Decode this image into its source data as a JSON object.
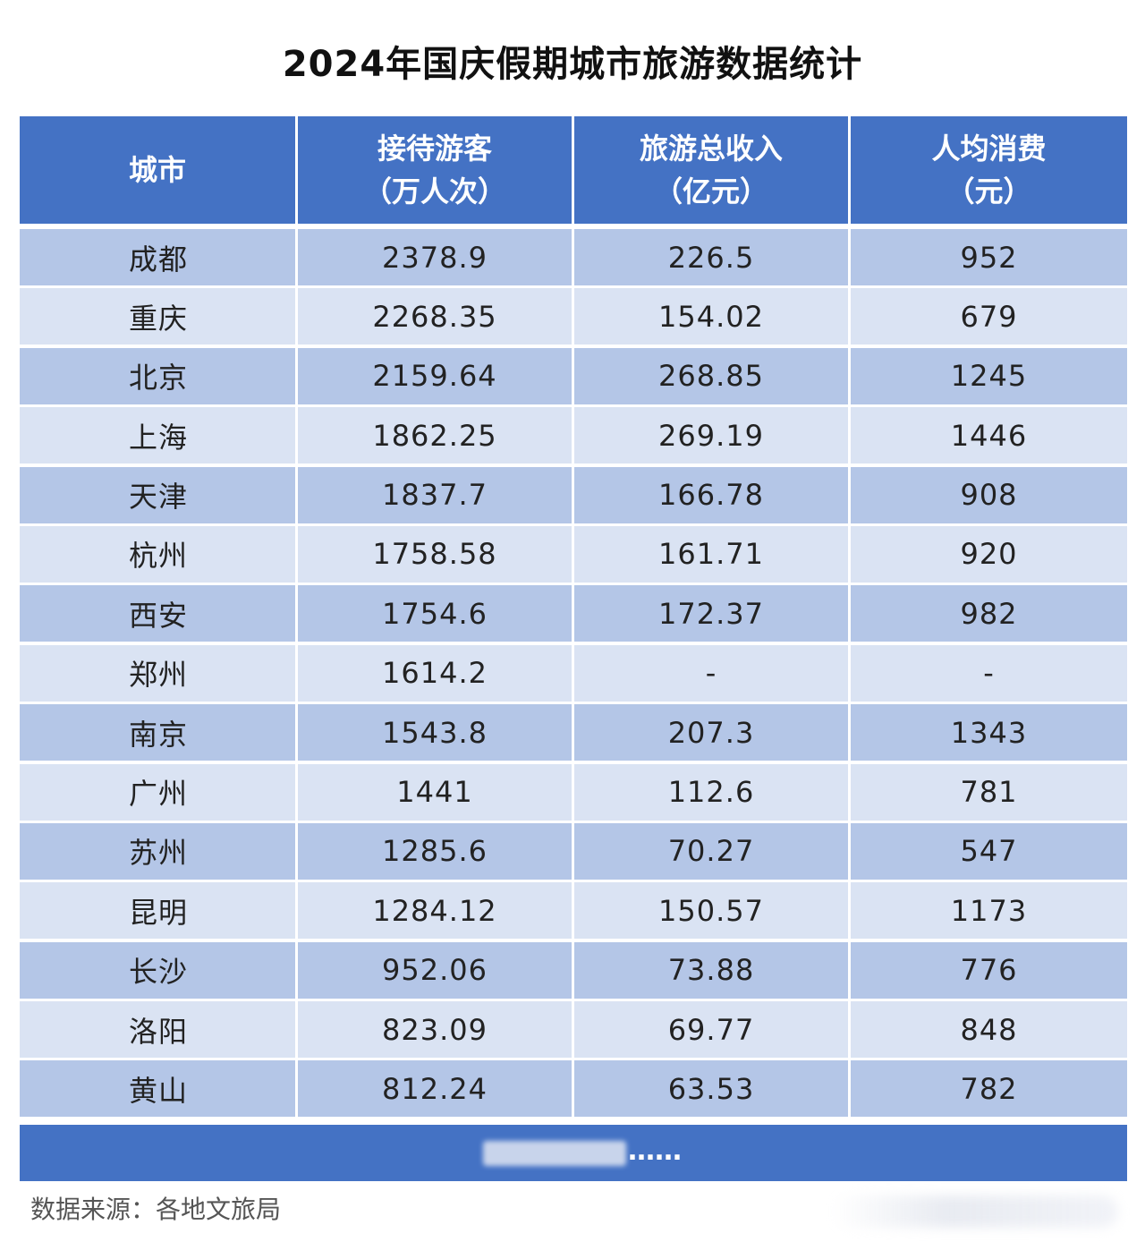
{
  "title": "2024年国庆假期城市旅游数据统计",
  "table": {
    "headers": [
      {
        "line1": "城市",
        "line2": ""
      },
      {
        "line1": "接待游客",
        "line2": "（万人次）"
      },
      {
        "line1": "旅游总收入",
        "line2": "（亿元）"
      },
      {
        "line1": "人均消费",
        "line2": "（元）"
      }
    ],
    "rows": [
      {
        "city": "成都",
        "visitors": "2378.9",
        "revenue": "226.5",
        "per_capita": "952"
      },
      {
        "city": "重庆",
        "visitors": "2268.35",
        "revenue": "154.02",
        "per_capita": "679"
      },
      {
        "city": "北京",
        "visitors": "2159.64",
        "revenue": "268.85",
        "per_capita": "1245"
      },
      {
        "city": "上海",
        "visitors": "1862.25",
        "revenue": "269.19",
        "per_capita": "1446"
      },
      {
        "city": "天津",
        "visitors": "1837.7",
        "revenue": "166.78",
        "per_capita": "908"
      },
      {
        "city": "杭州",
        "visitors": "1758.58",
        "revenue": "161.71",
        "per_capita": "920"
      },
      {
        "city": "西安",
        "visitors": "1754.6",
        "revenue": "172.37",
        "per_capita": "982"
      },
      {
        "city": "郑州",
        "visitors": "1614.2",
        "revenue": "-",
        "per_capita": "-"
      },
      {
        "city": "南京",
        "visitors": "1543.8",
        "revenue": "207.3",
        "per_capita": "1343"
      },
      {
        "city": "广州",
        "visitors": "1441",
        "revenue": "112.6",
        "per_capita": "781"
      },
      {
        "city": "苏州",
        "visitors": "1285.6",
        "revenue": "70.27",
        "per_capita": "547"
      },
      {
        "city": "昆明",
        "visitors": "1284.12",
        "revenue": "150.57",
        "per_capita": "1173"
      },
      {
        "city": "长沙",
        "visitors": "952.06",
        "revenue": "73.88",
        "per_capita": "776"
      },
      {
        "city": "洛阳",
        "visitors": "823.09",
        "revenue": "69.77",
        "per_capita": "848"
      },
      {
        "city": "黄山",
        "visitors": "812.24",
        "revenue": "63.53",
        "per_capita": "782"
      }
    ]
  },
  "footer": {
    "ellipsis": "……"
  },
  "source": "数据来源：各地文旅局",
  "colors": {
    "header_bg": "#4472c4",
    "row_dark": "#b4c6e7",
    "row_light": "#dae3f3"
  }
}
